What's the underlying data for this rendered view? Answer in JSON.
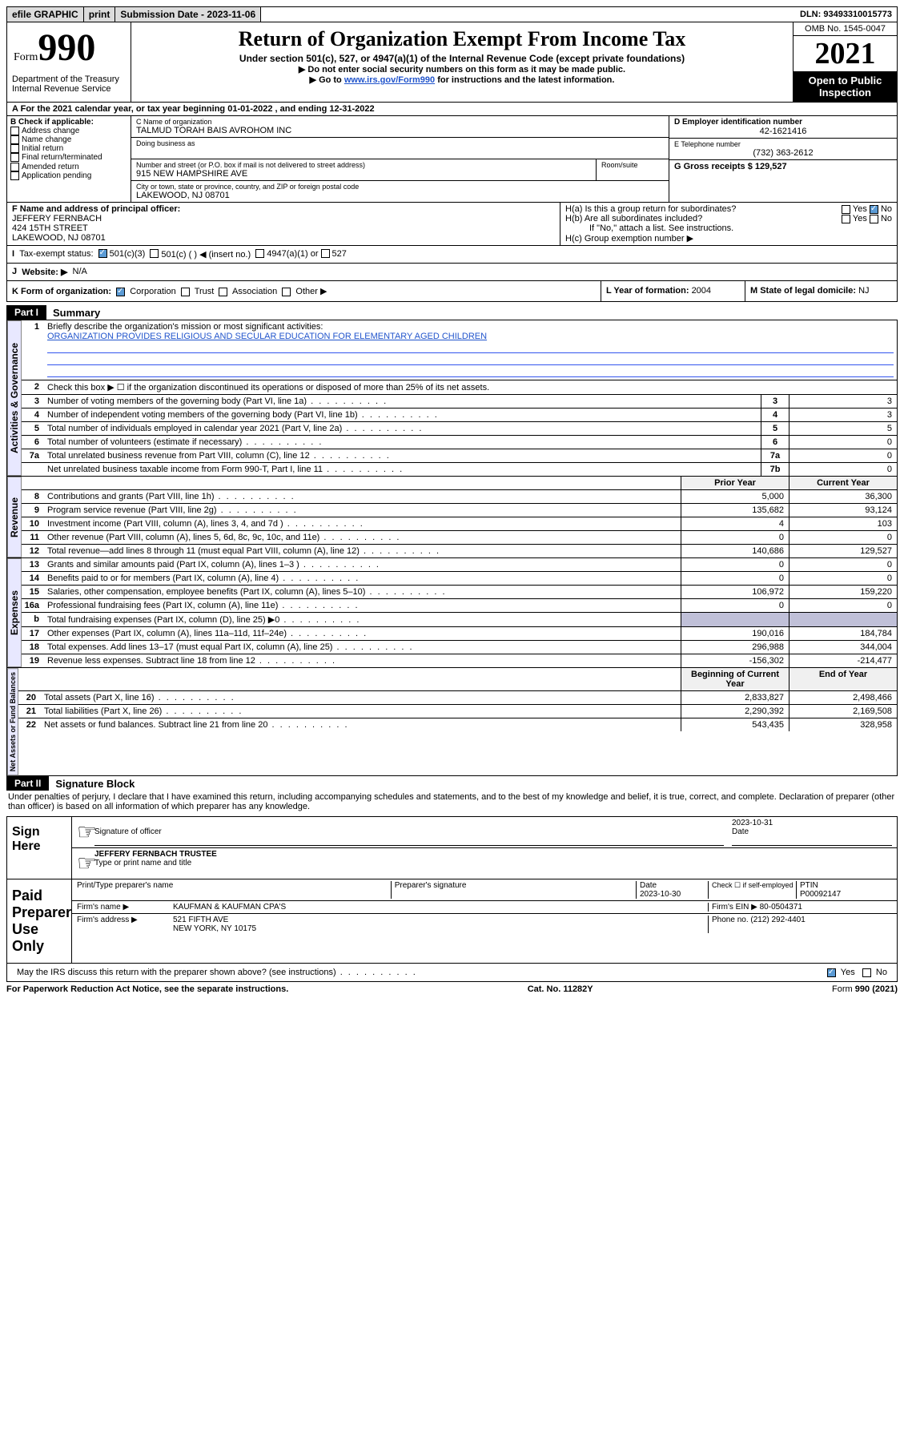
{
  "topbar": {
    "efile": "efile GRAPHIC",
    "print": "print",
    "submission_label": "Submission Date - ",
    "submission_date": "2023-11-06",
    "dln_label": "DLN: ",
    "dln": "93493310015773"
  },
  "header": {
    "form_word": "Form",
    "form_num": "990",
    "title": "Return of Organization Exempt From Income Tax",
    "sub": "Under section 501(c), 527, or 4947(a)(1) of the Internal Revenue Code (except private foundations)",
    "note1": "▶ Do not enter social security numbers on this form as it may be made public.",
    "note2_pre": "▶ Go to ",
    "note2_link": "www.irs.gov/Form990",
    "note2_post": " for instructions and the latest information.",
    "omb": "OMB No. 1545-0047",
    "year": "2021",
    "inspect": "Open to Public Inspection",
    "dept": "Department of the Treasury Internal Revenue Service"
  },
  "lineA": {
    "text_pre": "For the 2021 calendar year, or tax year beginning ",
    "begin": "01-01-2022",
    "mid": " , and ending ",
    "end": "12-31-2022"
  },
  "boxB": {
    "label": "B Check if applicable:",
    "items": [
      "Address change",
      "Name change",
      "Initial return",
      "Final return/terminated",
      "Amended return",
      "Application pending"
    ]
  },
  "boxC": {
    "name_label": "C Name of organization",
    "name": "TALMUD TORAH BAIS AVROHOM INC",
    "dba_label": "Doing business as",
    "addr_label": "Number and street (or P.O. box if mail is not delivered to street address)",
    "room_label": "Room/suite",
    "addr": "915 NEW HAMPSHIRE AVE",
    "city_label": "City or town, state or province, country, and ZIP or foreign postal code",
    "city": "LAKEWOOD, NJ  08701"
  },
  "boxD": {
    "label": "D Employer identification number",
    "val": "42-1621416"
  },
  "boxE": {
    "label": "E Telephone number",
    "val": "(732) 363-2612"
  },
  "boxG": {
    "label": "G Gross receipts $ ",
    "val": "129,527"
  },
  "boxF": {
    "label": "F Name and address of principal officer:",
    "name": "JEFFERY FERNBACH",
    "addr1": "424 15TH STREET",
    "addr2": "LAKEWOOD, NJ  08701"
  },
  "boxH": {
    "ha": "H(a)  Is this a group return for subordinates?",
    "hb": "H(b)  Are all subordinates included?",
    "hnote": "If \"No,\" attach a list. See instructions.",
    "hc": "H(c)  Group exemption number ▶"
  },
  "boxI": {
    "label": "Tax-exempt status:",
    "opt1": "501(c)(3)",
    "opt2": "501(c) (  ) ◀ (insert no.)",
    "opt3": "4947(a)(1) or",
    "opt4": "527"
  },
  "boxJ": {
    "label": "Website: ▶",
    "val": "N/A"
  },
  "boxK": {
    "label": "K Form of organization:",
    "corp": "Corporation",
    "trust": "Trust",
    "assoc": "Association",
    "other": "Other ▶"
  },
  "boxL": {
    "label": "L Year of formation: ",
    "val": "2004"
  },
  "boxM": {
    "label": "M State of legal domicile: ",
    "val": "NJ"
  },
  "part1": {
    "header": "Part I",
    "title": "Summary",
    "q1_label": "Briefly describe the organization's mission or most significant activities:",
    "q1_text": "ORGANIZATION PROVIDES RELIGIOUS AND SECULAR EDUCATION FOR ELEMENTARY AGED CHILDREN",
    "q2": "Check this box ▶ ☐ if the organization discontinued its operations or disposed of more than 25% of its net assets.",
    "lines_gov": [
      {
        "n": "3",
        "desc": "Number of voting members of the governing body (Part VI, line 1a)",
        "box": "3",
        "val": "3"
      },
      {
        "n": "4",
        "desc": "Number of independent voting members of the governing body (Part VI, line 1b)",
        "box": "4",
        "val": "3"
      },
      {
        "n": "5",
        "desc": "Total number of individuals employed in calendar year 2021 (Part V, line 2a)",
        "box": "5",
        "val": "5"
      },
      {
        "n": "6",
        "desc": "Total number of volunteers (estimate if necessary)",
        "box": "6",
        "val": "0"
      },
      {
        "n": "7a",
        "desc": "Total unrelated business revenue from Part VIII, column (C), line 12",
        "box": "7a",
        "val": "0"
      },
      {
        "n": "",
        "desc": "Net unrelated business taxable income from Form 990-T, Part I, line 11",
        "box": "7b",
        "val": "0"
      }
    ],
    "col_prior": "Prior Year",
    "col_current": "Current Year",
    "rev_lines": [
      {
        "n": "8",
        "desc": "Contributions and grants (Part VIII, line 1h)",
        "p": "5,000",
        "c": "36,300"
      },
      {
        "n": "9",
        "desc": "Program service revenue (Part VIII, line 2g)",
        "p": "135,682",
        "c": "93,124"
      },
      {
        "n": "10",
        "desc": "Investment income (Part VIII, column (A), lines 3, 4, and 7d )",
        "p": "4",
        "c": "103"
      },
      {
        "n": "11",
        "desc": "Other revenue (Part VIII, column (A), lines 5, 6d, 8c, 9c, 10c, and 11e)",
        "p": "0",
        "c": "0"
      },
      {
        "n": "12",
        "desc": "Total revenue—add lines 8 through 11 (must equal Part VIII, column (A), line 12)",
        "p": "140,686",
        "c": "129,527"
      }
    ],
    "exp_lines": [
      {
        "n": "13",
        "desc": "Grants and similar amounts paid (Part IX, column (A), lines 1–3 )",
        "p": "0",
        "c": "0"
      },
      {
        "n": "14",
        "desc": "Benefits paid to or for members (Part IX, column (A), line 4)",
        "p": "0",
        "c": "0"
      },
      {
        "n": "15",
        "desc": "Salaries, other compensation, employee benefits (Part IX, column (A), lines 5–10)",
        "p": "106,972",
        "c": "159,220"
      },
      {
        "n": "16a",
        "desc": "Professional fundraising fees (Part IX, column (A), line 11e)",
        "p": "0",
        "c": "0"
      },
      {
        "n": "b",
        "desc": "Total fundraising expenses (Part IX, column (D), line 25) ▶0",
        "p": "",
        "c": "",
        "shade": true
      },
      {
        "n": "17",
        "desc": "Other expenses (Part IX, column (A), lines 11a–11d, 11f–24e)",
        "p": "190,016",
        "c": "184,784"
      },
      {
        "n": "18",
        "desc": "Total expenses. Add lines 13–17 (must equal Part IX, column (A), line 25)",
        "p": "296,988",
        "c": "344,004"
      },
      {
        "n": "19",
        "desc": "Revenue less expenses. Subtract line 18 from line 12",
        "p": "-156,302",
        "c": "-214,477"
      }
    ],
    "col_begin": "Beginning of Current Year",
    "col_end": "End of Year",
    "net_lines": [
      {
        "n": "20",
        "desc": "Total assets (Part X, line 16)",
        "p": "2,833,827",
        "c": "2,498,466"
      },
      {
        "n": "21",
        "desc": "Total liabilities (Part X, line 26)",
        "p": "2,290,392",
        "c": "2,169,508"
      },
      {
        "n": "22",
        "desc": "Net assets or fund balances. Subtract line 21 from line 20",
        "p": "543,435",
        "c": "328,958"
      }
    ]
  },
  "sidelabels": {
    "gov": "Activities & Governance",
    "rev": "Revenue",
    "exp": "Expenses",
    "net": "Net Assets or Fund Balances"
  },
  "part2": {
    "header": "Part II",
    "title": "Signature Block",
    "penalty": "Under penalties of perjury, I declare that I have examined this return, including accompanying schedules and statements, and to the best of my knowledge and belief, it is true, correct, and complete. Declaration of preparer (other than officer) is based on all information of which preparer has any knowledge."
  },
  "sign": {
    "here": "Sign Here",
    "sig_officer": "Signature of officer",
    "date_label": "Date",
    "date": "2023-10-31",
    "name": "JEFFERY FERNBACH  TRUSTEE",
    "type_label": "Type or print name and title"
  },
  "paid": {
    "label": "Paid Preparer Use Only",
    "h1": "Print/Type preparer's name",
    "h2": "Preparer's signature",
    "h3": "Date",
    "date": "2023-10-30",
    "h4": "Check ☐ if self-employed",
    "h5": "PTIN",
    "ptin": "P00092147",
    "firm_name_l": "Firm's name    ▶",
    "firm_name": "KAUFMAN & KAUFMAN CPA'S",
    "firm_ein_l": "Firm's EIN ▶",
    "firm_ein": "80-0504371",
    "firm_addr_l": "Firm's address ▶",
    "firm_addr1": "521 FIFTH AVE",
    "firm_addr2": "NEW YORK, NY  10175",
    "phone_l": "Phone no. ",
    "phone": "(212) 292-4401"
  },
  "footer": {
    "discuss": "May the IRS discuss this return with the preparer shown above? (see instructions)",
    "paperwork": "For Paperwork Reduction Act Notice, see the separate instructions.",
    "cat": "Cat. No. 11282Y",
    "form": "Form 990 (2021)"
  },
  "colors": {
    "link": "#2255cc",
    "checked": "#5b9bd5",
    "shade": "#c0c0d8",
    "vtext_bg": "#e8e8ff"
  }
}
